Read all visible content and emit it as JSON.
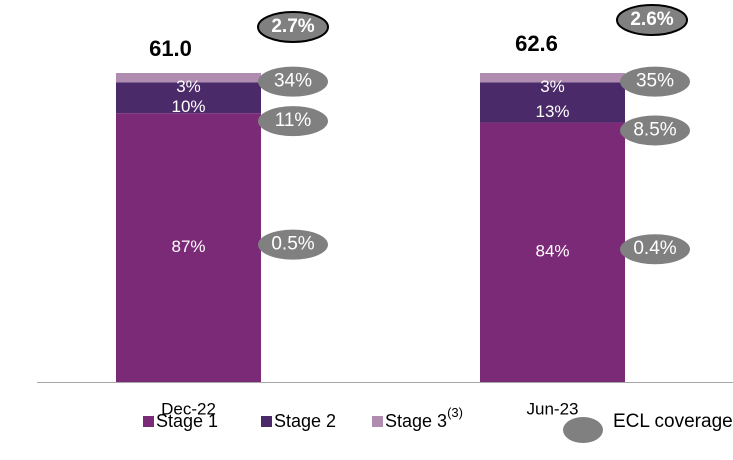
{
  "chart_data": {
    "type": "stacked_bar",
    "categories": [
      "Dec-22",
      "Jun-23"
    ],
    "ylim": [
      0,
      100
    ],
    "series": [
      {
        "name": "Stage 1",
        "color": "#7b2a78",
        "values": [
          87,
          84
        ],
        "value_labels": [
          "87%",
          "84%"
        ]
      },
      {
        "name": "Stage 2",
        "color": "#4b2a69",
        "values": [
          10,
          13
        ],
        "value_labels": [
          "10%",
          "13%"
        ]
      },
      {
        "name": "Stage 3",
        "color": "#b08cb0",
        "values": [
          3,
          3
        ],
        "value_labels": [
          "3%",
          "3%"
        ],
        "note": "(3)"
      }
    ],
    "totals": {
      "values": [
        61,
        62.6
      ],
      "value_labels": [
        "61.0",
        "62.6"
      ]
    },
    "coverage": {
      "name": "ECL coverage",
      "color": "#808080",
      "total": {
        "values": [
          2.7,
          2.6
        ],
        "value_labels": [
          "2.7%",
          "2.6%"
        ]
      },
      "series": [
        {
          "values": [
            0.5,
            0.4
          ],
          "value_labels": [
            "0.5%",
            "0.4%"
          ]
        },
        {
          "values": [
            11,
            8.5
          ],
          "value_labels": [
            "11%",
            "8.5%"
          ]
        },
        {
          "values": [
            34,
            35
          ],
          "value_labels": [
            "34%",
            "35%"
          ]
        }
      ]
    }
  }
}
